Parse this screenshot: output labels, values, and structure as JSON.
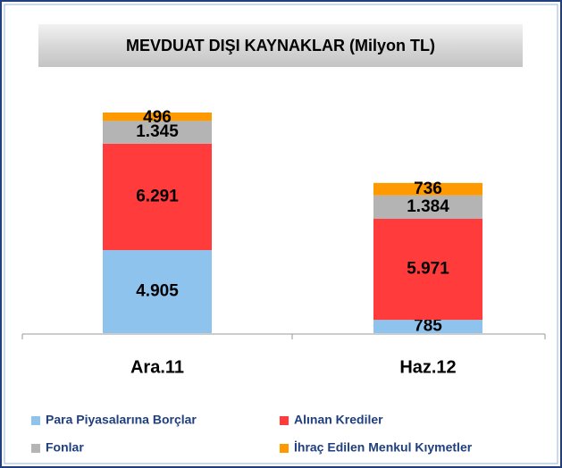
{
  "chart_data": {
    "type": "stacked-bar",
    "title": "MEVDUAT DIŞI KAYNAKLAR (Milyon TL)",
    "categories": [
      "Ara.11",
      "Haz.12"
    ],
    "series": [
      {
        "name": "Para Piyasalarına Borçlar",
        "color": "#8ec3ee",
        "values": [
          4905,
          785
        ],
        "value_labels": [
          "4.905",
          "785"
        ]
      },
      {
        "name": "Alınan Krediler",
        "color": "#ff3b3b",
        "values": [
          6291,
          5971
        ],
        "value_labels": [
          "6.291",
          "5.971"
        ]
      },
      {
        "name": "Fonlar",
        "color": "#b4b4b4",
        "values": [
          1345,
          1384
        ],
        "value_labels": [
          "1.345",
          "1.384"
        ]
      },
      {
        "name": "İhraç Edilen Menkul Kıymetler",
        "color": "#ff9900",
        "values": [
          496,
          736
        ],
        "value_labels": [
          "496",
          "736"
        ]
      }
    ]
  }
}
